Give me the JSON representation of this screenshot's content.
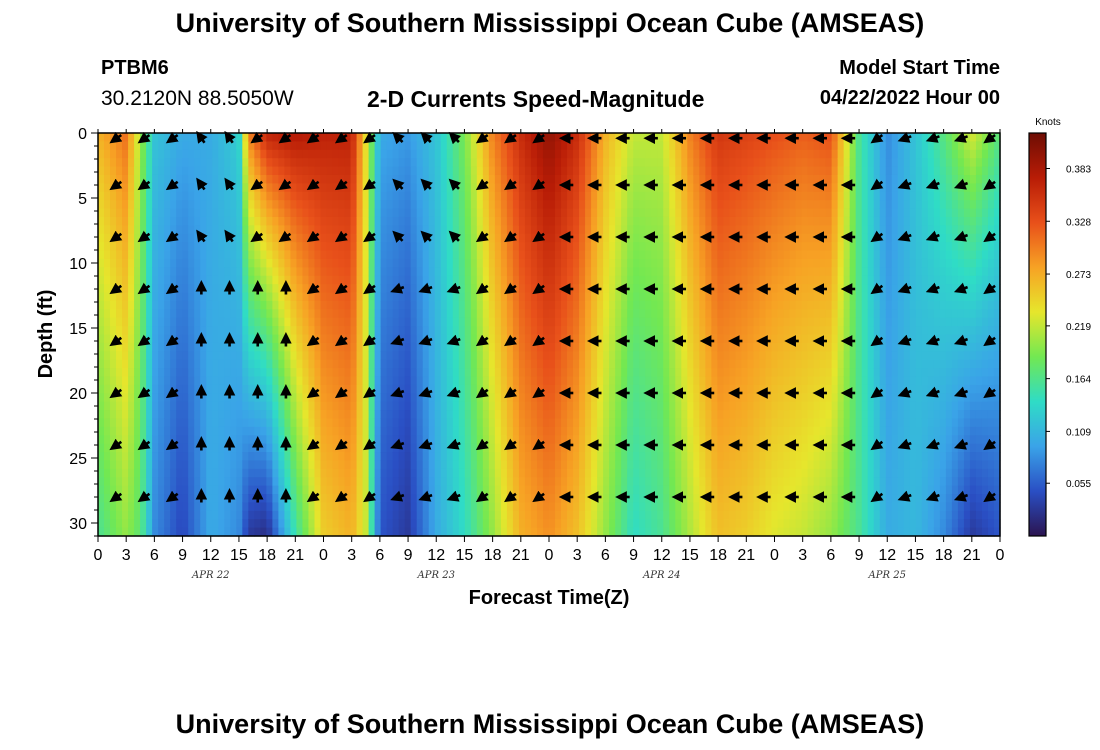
{
  "header": {
    "title": "University of Southern Mississippi Ocean Cube (AMSEAS)",
    "station_id": "PTBM6",
    "station_coords": "30.2120N  88.5050W",
    "subtitle": "2-D Currents Speed-Magnitude",
    "model_start_label": "Model Start Time",
    "model_start_value": "04/22/2022 Hour 00"
  },
  "footer": {
    "title": "University of Southern Mississippi Ocean Cube (AMSEAS)"
  },
  "chart_data": {
    "type": "heatmap",
    "title": "2-D Currents Speed-Magnitude",
    "xlabel": "Forecast Time(Z)",
    "ylabel": "Depth (ft)",
    "x_tick_labels": [
      "0",
      "3",
      "6",
      "9",
      "12",
      "15",
      "18",
      "21",
      "0",
      "3",
      "6",
      "9",
      "12",
      "15",
      "18",
      "21",
      "0",
      "3",
      "6",
      "9",
      "12",
      "15",
      "18",
      "21",
      "0",
      "3",
      "6",
      "9",
      "12",
      "15",
      "18",
      "21",
      "0"
    ],
    "x_range_hours": [
      0,
      96
    ],
    "day_labels": [
      {
        "label": "APR 22",
        "hour": 12
      },
      {
        "label": "APR 23",
        "hour": 36
      },
      {
        "label": "APR 24",
        "hour": 60
      },
      {
        "label": "APR 25",
        "hour": 84
      }
    ],
    "y_tick_labels": [
      "0",
      "5",
      "10",
      "15",
      "20",
      "25",
      "30"
    ],
    "y_range_ft": [
      0,
      31
    ],
    "colorbar": {
      "unit": "Knots",
      "range": [
        0.0,
        0.42
      ],
      "tick_labels": [
        "0.383",
        "0.328",
        "0.273",
        "0.219",
        "0.164",
        "0.109",
        "0.055"
      ],
      "tick_values": [
        0.383,
        0.328,
        0.273,
        0.219,
        0.164,
        0.109,
        0.055
      ],
      "colors": [
        "#2b1450",
        "#2a4fc4",
        "#3aa3e8",
        "#2fdcc6",
        "#72e852",
        "#e6e62c",
        "#f7a224",
        "#e8501a",
        "#b81c06",
        "#6e0d04"
      ]
    },
    "speed_keyframes": {
      "hours": [
        0,
        3,
        4.6,
        6,
        9,
        12,
        15,
        16,
        18,
        21,
        24,
        27,
        28.5,
        30,
        33,
        36,
        39,
        42,
        45,
        48,
        51,
        54,
        57,
        60,
        63,
        66,
        69,
        72,
        75,
        78,
        81,
        84,
        87,
        90,
        93,
        96
      ],
      "surface": [
        0.27,
        0.31,
        0.2,
        0.12,
        0.1,
        0.1,
        0.13,
        0.3,
        0.37,
        0.38,
        0.37,
        0.37,
        0.24,
        0.1,
        0.09,
        0.12,
        0.19,
        0.3,
        0.36,
        0.4,
        0.36,
        0.27,
        0.22,
        0.22,
        0.3,
        0.35,
        0.34,
        0.33,
        0.32,
        0.33,
        0.16,
        0.08,
        0.12,
        0.17,
        0.23,
        0.17
      ],
      "bottom": [
        0.16,
        0.2,
        0.17,
        0.08,
        0.04,
        0.1,
        0.08,
        0.03,
        0.02,
        0.15,
        0.25,
        0.27,
        0.22,
        0.05,
        0.03,
        0.1,
        0.14,
        0.2,
        0.27,
        0.29,
        0.26,
        0.2,
        0.14,
        0.16,
        0.21,
        0.26,
        0.25,
        0.23,
        0.22,
        0.2,
        0.16,
        0.1,
        0.11,
        0.08,
        0.03,
        0.05
      ]
    },
    "vector_depths_ft": [
      4,
      8,
      12,
      16,
      20,
      24,
      28
    ],
    "vector_hours": [
      2,
      5,
      8,
      11,
      14,
      17,
      20,
      23,
      26,
      29,
      32,
      35,
      38,
      41,
      44,
      47,
      50,
      53,
      56,
      59,
      62,
      65,
      68,
      71,
      74,
      77,
      80,
      83,
      86,
      89,
      92,
      95
    ]
  }
}
